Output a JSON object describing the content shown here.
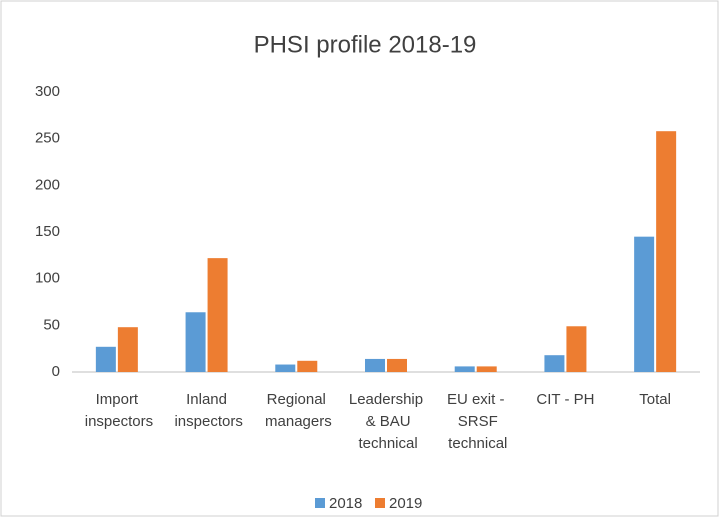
{
  "chart_data": {
    "type": "bar",
    "title": "PHSI profile 2018-19",
    "categories": [
      "Import inspectors",
      "Inland inspectors",
      "Regional managers",
      "Leadership & BAU technical",
      "EU exit - SRSF technical",
      "CIT - PH",
      "Total"
    ],
    "series": [
      {
        "name": "2018",
        "color": "#5b9bd5",
        "values": [
          27,
          64,
          8,
          14,
          6,
          18,
          145
        ]
      },
      {
        "name": "2019",
        "color": "#ed7d31",
        "values": [
          48,
          122,
          12,
          14,
          6,
          49,
          258
        ]
      }
    ],
    "ylim": [
      0,
      300
    ],
    "yticks": [
      0,
      50,
      100,
      150,
      200,
      250,
      300
    ],
    "grid": false,
    "legend": "bottom"
  }
}
